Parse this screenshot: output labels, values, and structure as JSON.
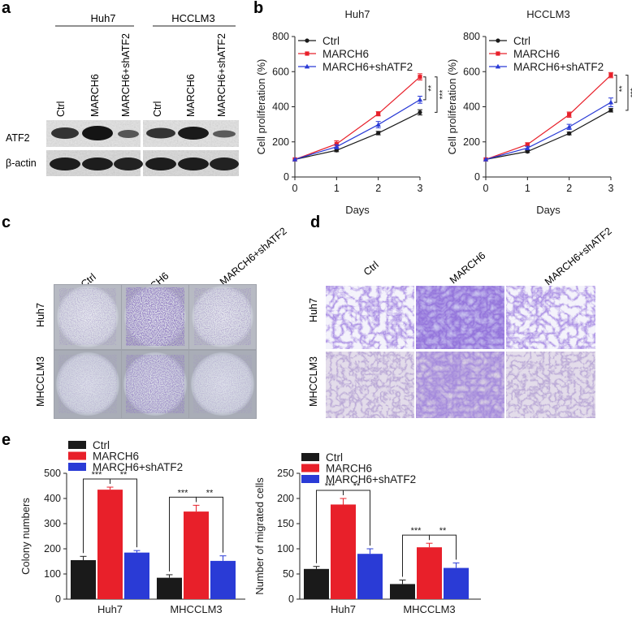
{
  "panels": {
    "a": "a",
    "b": "b",
    "c": "c",
    "d": "d",
    "e": "e"
  },
  "panel_a": {
    "groups": [
      "Huh7",
      "HCCLM3"
    ],
    "lanes": [
      "Ctrl",
      "MARCH6",
      "MARCH6+shATF2",
      "Ctrl",
      "MARCH6",
      "MARCH6+shATF2"
    ],
    "rows": [
      "ATF2",
      "β-actin"
    ]
  },
  "panel_c": {
    "columns": [
      "Ctrl",
      "MARCH6",
      "MARCH6+shATF2"
    ],
    "rows": [
      "Huh7",
      "MHCCLM3"
    ]
  },
  "panel_d": {
    "columns": [
      "Ctrl",
      "MARCH6",
      "MARCH6+shATF2"
    ],
    "rows": [
      "Huh7",
      "MHCCLM3"
    ]
  },
  "colors": {
    "ctrl": "#1a1a1a",
    "march6": "#e8202a",
    "shatf2": "#2a3bd6"
  },
  "chart_data": [
    {
      "id": "b-huh7",
      "type": "line",
      "title": "Huh7",
      "xlabel": "Days",
      "ylabel": "Cell proliferation (%)",
      "x": [
        0,
        1,
        2,
        3
      ],
      "xticks": [
        "0",
        "1",
        "2",
        "3"
      ],
      "yticks": [
        "0",
        "200",
        "400",
        "600",
        "800"
      ],
      "ylim": [
        0,
        800
      ],
      "series": [
        {
          "name": "Ctrl",
          "values": [
            100,
            152,
            250,
            368
          ],
          "errors": [
            0,
            8,
            10,
            15
          ]
        },
        {
          "name": "MARCH6",
          "values": [
            100,
            188,
            360,
            570
          ],
          "errors": [
            0,
            18,
            12,
            18
          ]
        },
        {
          "name": "MARCH6+shATF2",
          "values": [
            100,
            172,
            298,
            440
          ],
          "errors": [
            0,
            12,
            18,
            20
          ]
        }
      ],
      "sig": [
        "**",
        "***"
      ]
    },
    {
      "id": "b-hcclm3",
      "type": "line",
      "title": "HCCLM3",
      "xlabel": "Days",
      "ylabel": "Cell proliferation (%)",
      "x": [
        0,
        1,
        2,
        3
      ],
      "xticks": [
        "0",
        "1",
        "2",
        "3"
      ],
      "yticks": [
        "0",
        "200",
        "400",
        "600",
        "800"
      ],
      "ylim": [
        0,
        800
      ],
      "series": [
        {
          "name": "Ctrl",
          "values": [
            100,
            145,
            248,
            380
          ],
          "errors": [
            0,
            6,
            8,
            10
          ]
        },
        {
          "name": "MARCH6",
          "values": [
            100,
            185,
            355,
            580
          ],
          "errors": [
            0,
            10,
            15,
            15
          ]
        },
        {
          "name": "MARCH6+shATF2",
          "values": [
            100,
            165,
            285,
            425
          ],
          "errors": [
            0,
            10,
            15,
            25
          ]
        }
      ],
      "sig": [
        "**",
        "***"
      ]
    },
    {
      "id": "e-colony",
      "type": "bar",
      "ylabel": "Colony numbers",
      "categories": [
        "Huh7",
        "MHCCLM3"
      ],
      "yticks": [
        "0",
        "100",
        "200",
        "300",
        "400",
        "500"
      ],
      "ylim": [
        0,
        500
      ],
      "series": [
        {
          "name": "Ctrl",
          "values": [
            155,
            85
          ],
          "errors": [
            15,
            12
          ]
        },
        {
          "name": "MARCH6",
          "values": [
            435,
            348
          ],
          "errors": [
            10,
            25
          ]
        },
        {
          "name": "MARCH6+shATF2",
          "values": [
            185,
            152
          ],
          "errors": [
            8,
            20
          ]
        }
      ],
      "sig": [
        [
          "***",
          "**"
        ],
        [
          "***",
          "**"
        ]
      ]
    },
    {
      "id": "e-migration",
      "type": "bar",
      "ylabel": "Number of migrated cells",
      "categories": [
        "Huh7",
        "MHCCLM3"
      ],
      "yticks": [
        "0",
        "50",
        "100",
        "150",
        "200",
        "250"
      ],
      "ylim": [
        0,
        250
      ],
      "series": [
        {
          "name": "Ctrl",
          "values": [
            60,
            30
          ],
          "errors": [
            5,
            8
          ]
        },
        {
          "name": "MARCH6",
          "values": [
            188,
            103
          ],
          "errors": [
            12,
            8
          ]
        },
        {
          "name": "MARCH6+shATF2",
          "values": [
            90,
            62
          ],
          "errors": [
            10,
            10
          ]
        }
      ],
      "sig": [
        [
          "***",
          "**"
        ],
        [
          "***",
          "**"
        ]
      ]
    }
  ]
}
